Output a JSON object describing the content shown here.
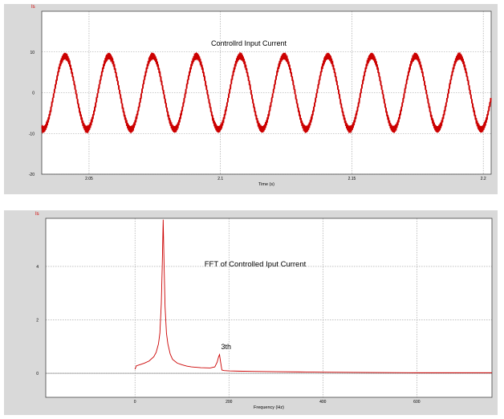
{
  "chart_data": [
    {
      "type": "line",
      "title": "Controllrd Input Current",
      "xlabel": "Time (s)",
      "ylabel": "",
      "signal_name": "Is",
      "xlim": [
        2.032,
        2.203
      ],
      "ylim": [
        -20,
        20
      ],
      "xticks": [
        2.05,
        2.1,
        2.15,
        2.2
      ],
      "xtick_labels": [
        "2.05",
        "2.1",
        "2.15",
        "2.2"
      ],
      "yticks": [
        -20,
        -10,
        0,
        10
      ],
      "ytick_labels": [
        "-20",
        "-10",
        "0",
        "10"
      ],
      "grid": true,
      "series": [
        {
          "color": "#cc0000",
          "waveform": "sine",
          "amplitude": 9,
          "frequency_hz": 60,
          "phase_deg": -73,
          "ripple_amplitude": 0.8,
          "ripple_frequency_hz": 3000
        }
      ]
    },
    {
      "type": "line",
      "title": "FFT of Controlled Iput Current",
      "xlabel": "Frequency (Hz)",
      "ylabel": "",
      "signal_name": "Is",
      "xlim": [
        -190,
        760
      ],
      "ylim": [
        -0.9,
        5.8
      ],
      "xticks": [
        0,
        200,
        400,
        600
      ],
      "xtick_labels": [
        "0",
        "200",
        "400",
        "600"
      ],
      "yticks": [
        0,
        2,
        4
      ],
      "ytick_labels": [
        "0",
        "2",
        "4"
      ],
      "grid": true,
      "annotations": [
        {
          "text": "3th",
          "x": 180,
          "y": 0.72
        }
      ],
      "series": [
        {
          "color": "#cc0000",
          "x": [
            0,
            3,
            10,
            20,
            30,
            40,
            45,
            50,
            53,
            56,
            58,
            60,
            62,
            64,
            67,
            70,
            75,
            80,
            90,
            100,
            110,
            120,
            140,
            160,
            170,
            175,
            178,
            180,
            182,
            185,
            190,
            200,
            220,
            250,
            300,
            350,
            400,
            500,
            600,
            700,
            760
          ],
          "y": [
            0.15,
            0.28,
            0.32,
            0.38,
            0.46,
            0.62,
            0.78,
            1.1,
            1.5,
            2.6,
            4.0,
            5.75,
            4.0,
            2.5,
            1.5,
            1.1,
            0.72,
            0.52,
            0.38,
            0.32,
            0.27,
            0.24,
            0.21,
            0.2,
            0.24,
            0.42,
            0.62,
            0.7,
            0.45,
            0.12,
            0.1,
            0.09,
            0.08,
            0.07,
            0.06,
            0.05,
            0.04,
            0.03,
            0.02,
            0.02,
            0.02
          ]
        }
      ]
    }
  ]
}
